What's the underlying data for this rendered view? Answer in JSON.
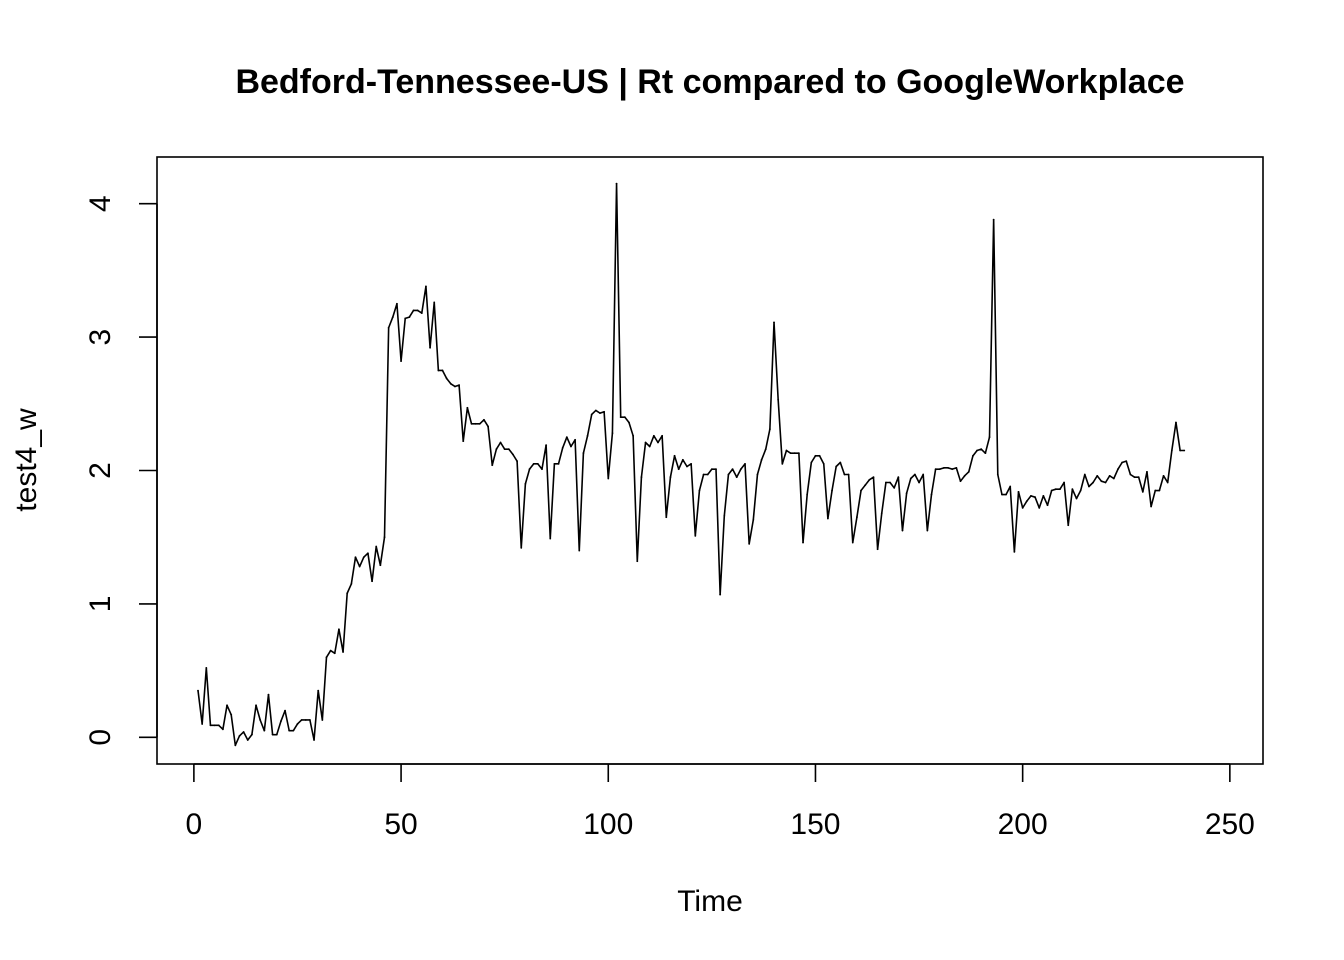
{
  "chart_data": {
    "type": "line",
    "title": "Bedford-Tennessee-US | Rt compared to GoogleWorkplace",
    "xlabel": "Time",
    "ylabel": "test4_w",
    "xlim": [
      -8.9,
      258.0
    ],
    "ylim": [
      -0.2,
      4.35
    ],
    "x_ticks": [
      0,
      50,
      100,
      150,
      200,
      250
    ],
    "y_ticks": [
      0,
      1,
      2,
      3,
      4
    ],
    "grid": false,
    "legend": "none",
    "line_color": "#000000",
    "series": [
      {
        "x_start": 1,
        "x_step": 1,
        "values": [
          0.35,
          0.1,
          0.52,
          0.09,
          0.09,
          0.09,
          0.06,
          0.24,
          0.17,
          -0.06,
          0.01,
          0.04,
          -0.02,
          0.02,
          0.24,
          0.13,
          0.05,
          0.32,
          0.02,
          0.02,
          0.12,
          0.2,
          0.05,
          0.05,
          0.1,
          0.13,
          0.13,
          0.13,
          -0.02,
          0.35,
          0.13,
          0.6,
          0.65,
          0.63,
          0.81,
          0.64,
          1.08,
          1.15,
          1.35,
          1.28,
          1.35,
          1.38,
          1.17,
          1.43,
          1.29,
          1.5,
          3.07,
          3.15,
          3.25,
          2.82,
          3.14,
          3.15,
          3.2,
          3.2,
          3.18,
          3.38,
          2.92,
          3.26,
          2.75,
          2.75,
          2.69,
          2.65,
          2.63,
          2.64,
          2.22,
          2.47,
          2.35,
          2.35,
          2.35,
          2.38,
          2.33,
          2.04,
          2.16,
          2.21,
          2.16,
          2.16,
          2.12,
          2.07,
          1.42,
          1.9,
          2.01,
          2.05,
          2.05,
          2.01,
          2.19,
          1.49,
          2.05,
          2.05,
          2.17,
          2.25,
          2.18,
          2.23,
          1.4,
          2.13,
          2.26,
          2.42,
          2.45,
          2.43,
          2.44,
          1.94,
          2.28,
          4.15,
          2.4,
          2.4,
          2.36,
          2.26,
          1.32,
          1.95,
          2.21,
          2.18,
          2.26,
          2.21,
          2.26,
          1.65,
          1.95,
          2.11,
          2.01,
          2.08,
          2.03,
          2.05,
          1.51,
          1.85,
          1.97,
          1.97,
          2.01,
          2.01,
          1.07,
          1.66,
          1.97,
          2.01,
          1.95,
          2.01,
          2.05,
          1.45,
          1.63,
          1.97,
          2.08,
          2.16,
          2.31,
          3.11,
          2.53,
          2.05,
          2.15,
          2.13,
          2.13,
          2.13,
          1.46,
          1.82,
          2.06,
          2.11,
          2.11,
          2.05,
          1.64,
          1.85,
          2.03,
          2.06,
          1.97,
          1.97,
          1.46,
          1.65,
          1.85,
          1.89,
          1.93,
          1.95,
          1.41,
          1.68,
          1.91,
          1.91,
          1.87,
          1.95,
          1.55,
          1.83,
          1.94,
          1.97,
          1.91,
          1.97,
          1.55,
          1.82,
          2.01,
          2.01,
          2.02,
          2.02,
          2.01,
          2.02,
          1.92,
          1.96,
          1.99,
          2.11,
          2.15,
          2.16,
          2.13,
          2.25,
          3.88,
          1.97,
          1.82,
          1.82,
          1.88,
          1.39,
          1.84,
          1.72,
          1.77,
          1.81,
          1.8,
          1.72,
          1.81,
          1.74,
          1.85,
          1.86,
          1.86,
          1.91,
          1.59,
          1.86,
          1.79,
          1.85,
          1.97,
          1.88,
          1.91,
          1.96,
          1.92,
          1.91,
          1.96,
          1.94,
          2.01,
          2.06,
          2.07,
          1.97,
          1.95,
          1.95,
          1.84,
          1.99,
          1.73,
          1.85,
          1.85,
          1.96,
          1.91,
          2.15,
          2.36,
          2.15,
          2.15
        ]
      }
    ]
  }
}
